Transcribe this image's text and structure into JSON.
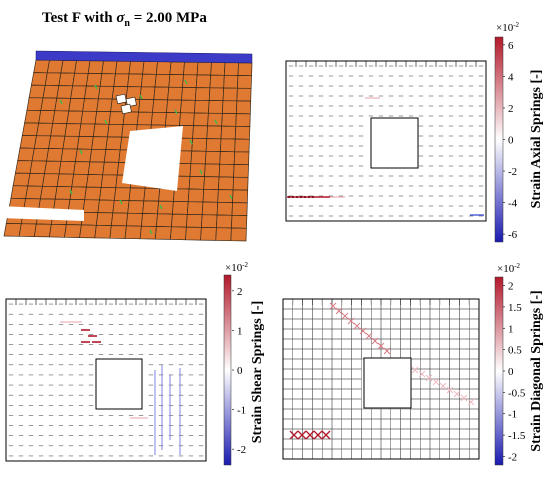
{
  "title": {
    "prefix": "Test F with ",
    "sigma": "σ",
    "sub": "n",
    "suffix": " = 2.00 MPa"
  },
  "colors": {
    "block_fill": "#e07a32",
    "block_grid": "#3a2a1a",
    "top_plate": "#3b3bc8",
    "crack_green": "#3fb84a",
    "tension_red": "#b2182b",
    "compression_blue": "#2c3fd6",
    "mesh_gray": "#555555"
  },
  "panels": [
    {
      "id": "deformed-mesh",
      "kind": "deformed-block-mesh"
    },
    {
      "id": "axial",
      "kind": "spring-strain-map",
      "colorbar": {
        "label": "Strain Axial Springs [-]",
        "exponent": "×10",
        "exp_power": "-2",
        "ticks": [
          "6",
          "4",
          "2",
          "0",
          "-2",
          "-4",
          "-6"
        ],
        "range": [
          -6.5,
          6.5
        ]
      }
    },
    {
      "id": "shear",
      "kind": "spring-strain-map",
      "colorbar": {
        "label": "Strain Shear Springs [-]",
        "exponent": "×10",
        "exp_power": "-2",
        "ticks": [
          "2",
          "1",
          "0",
          "-1",
          "-2"
        ],
        "range": [
          -2.4,
          2.4
        ]
      }
    },
    {
      "id": "diagonal",
      "kind": "spring-strain-map",
      "colorbar": {
        "label": "Strain Diagonal Springs [-]",
        "exponent": "×10",
        "exp_power": "-2",
        "ticks": [
          "2",
          "1.5",
          "1",
          "0.5",
          "0",
          "-0.5",
          "-1",
          "-1.5",
          "-2"
        ],
        "range": [
          -2.2,
          2.2
        ]
      }
    }
  ]
}
